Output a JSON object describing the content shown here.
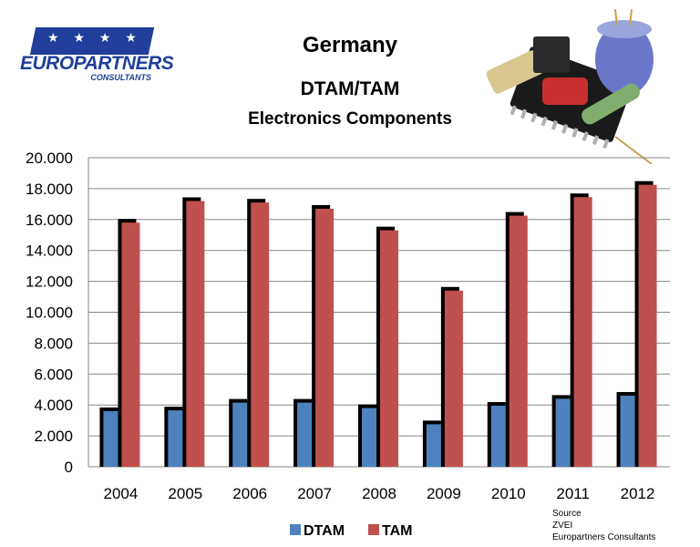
{
  "logo": {
    "stars": "★ ★ ★ ★",
    "name": "EUROPARTNERS",
    "subtitle": "CONSULTANTS"
  },
  "title": "Germany",
  "subtitle": "DTAM/TAM",
  "subtitle2": "Electronics Components",
  "source": {
    "line1": "Source",
    "line2": "ZVEI",
    "line3": "Europartners Consultants"
  },
  "colors": {
    "dtam": "#4f81bd",
    "tam": "#c0504d",
    "shadow": "#000000",
    "grid": "#868686"
  },
  "chart_data": {
    "type": "bar",
    "categories": [
      "2004",
      "2005",
      "2006",
      "2007",
      "2008",
      "2009",
      "2010",
      "2011",
      "2012"
    ],
    "series": [
      {
        "name": "DTAM",
        "values": [
          3600,
          3650,
          4150,
          4150,
          3800,
          2750,
          3950,
          4400,
          4600
        ]
      },
      {
        "name": "TAM",
        "values": [
          15800,
          17200,
          17100,
          16700,
          15300,
          11400,
          16250,
          17450,
          18250
        ]
      }
    ],
    "ylim": [
      0,
      20000
    ],
    "yticks": [
      0,
      2000,
      4000,
      6000,
      8000,
      10000,
      12000,
      14000,
      16000,
      18000,
      20000
    ],
    "ytick_labels": [
      "0",
      "2.000",
      "4.000",
      "6.000",
      "8.000",
      "10.000",
      "12.000",
      "14.000",
      "16.000",
      "18.000",
      "20.000"
    ],
    "legend_position": "bottom",
    "grid": true
  }
}
